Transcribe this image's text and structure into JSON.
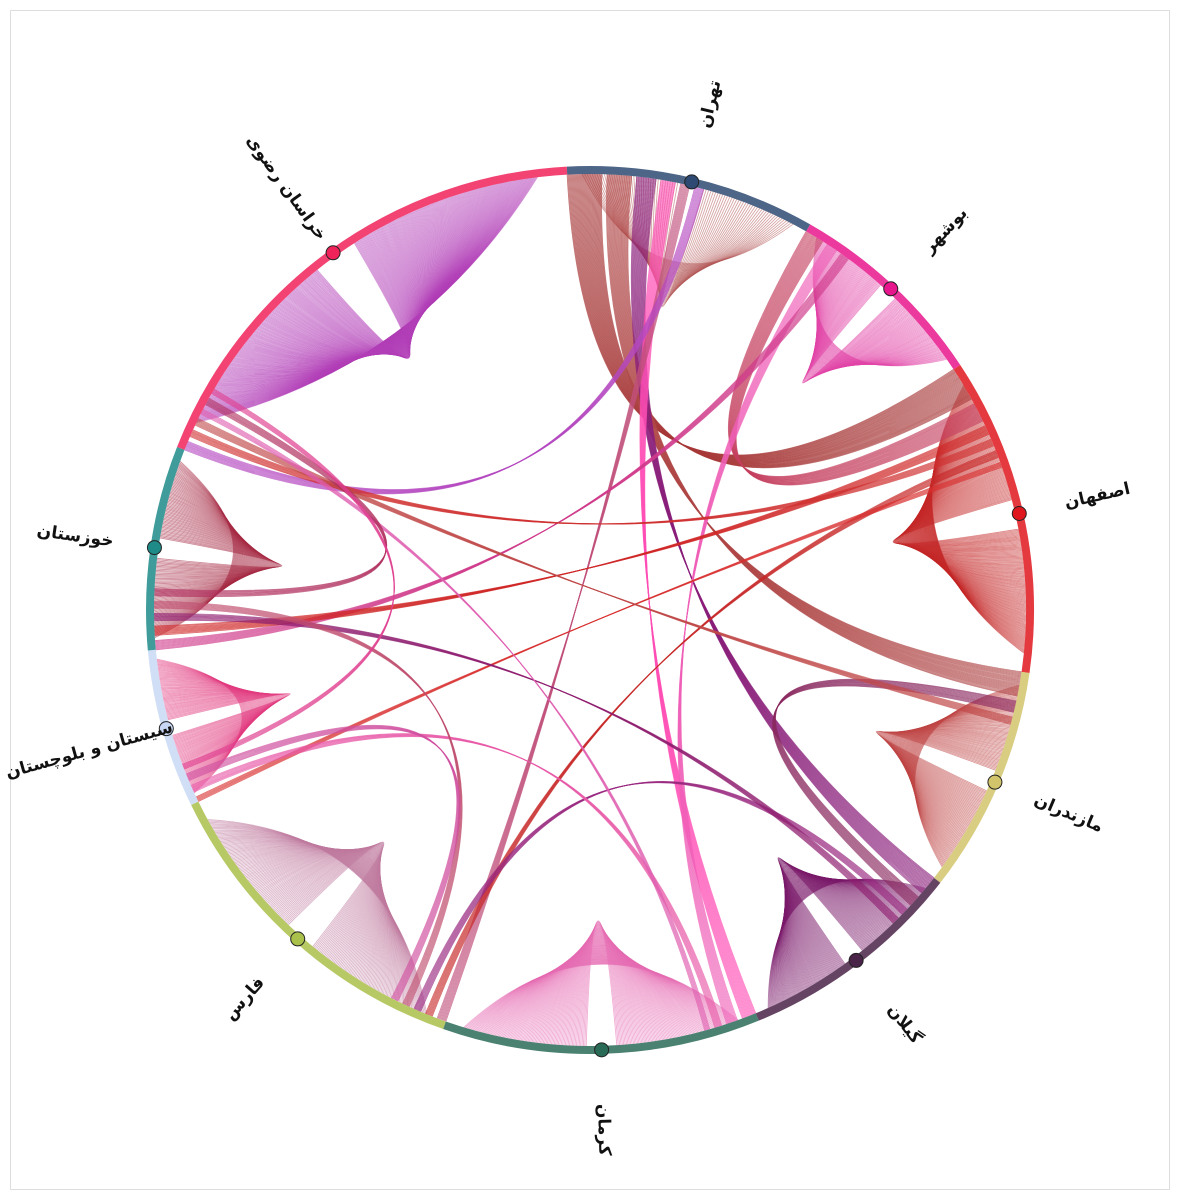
{
  "diagram": {
    "type": "hive-chord",
    "nodes": [
      {
        "name": "تهران",
        "color": "#2e4a72",
        "count": 110
      },
      {
        "name": "بوشهر",
        "color": "#e8168c",
        "count": 90
      },
      {
        "name": "اصفهان",
        "color": "#e0161e",
        "count": 140
      },
      {
        "name": "مازندران",
        "color": "#d1c46a",
        "count": 100
      },
      {
        "name": "گیلان",
        "color": "#4a2348",
        "count": 100
      },
      {
        "name": "کرمان",
        "color": "#2a6b58",
        "count": 140
      },
      {
        "name": "فارس",
        "color": "#a9c04a",
        "count": 150
      },
      {
        "name": "سیستان و بلوچستان",
        "color": "#c8d8f4",
        "count": 70
      },
      {
        "name": "خوزستان",
        "color": "#1f8b88",
        "count": 90
      },
      {
        "name": "خراسان رضوی",
        "color": "#f0225a",
        "count": 220
      }
    ],
    "links": [
      {
        "from": "خراسان رضوی",
        "to": "خراسان رضوی",
        "weight": 180,
        "color": "#b340b8"
      },
      {
        "from": "اصفهان",
        "to": "اصفهان",
        "weight": 110,
        "color": "#c42828"
      },
      {
        "from": "بوشهر",
        "to": "بوشهر",
        "weight": 70,
        "color": "#e245a8"
      },
      {
        "from": "مازندران",
        "to": "مازندران",
        "weight": 70,
        "color": "#c04646"
      },
      {
        "from": "گیلان",
        "to": "گیلان",
        "weight": 80,
        "color": "#7a1a6a"
      },
      {
        "from": "کرمان",
        "to": "کرمان",
        "weight": 90,
        "color": "#e66bb3"
      },
      {
        "from": "فارس",
        "to": "فارس",
        "weight": 90,
        "color": "#bf7a9f"
      },
      {
        "from": "خوزستان",
        "to": "خوزستان",
        "weight": 60,
        "color": "#a52a44"
      },
      {
        "from": "سیستان و بلوچستان",
        "to": "سیستان و بلوچستان",
        "weight": 55,
        "color": "#e13a80"
      },
      {
        "from": "تهران",
        "to": "تهران",
        "weight": 40,
        "color": "#b45a5a"
      },
      {
        "from": "تهران",
        "to": "اصفهان",
        "weight": 35,
        "color": "#a83a3a"
      },
      {
        "from": "تهران",
        "to": "مازندران",
        "weight": 25,
        "color": "#b04848"
      },
      {
        "from": "تهران",
        "to": "گیلان",
        "weight": 20,
        "color": "#8a1f7a"
      },
      {
        "from": "تهران",
        "to": "کرمان",
        "weight": 15,
        "color": "#ff4fb5"
      },
      {
        "from": "تهران",
        "to": "فارس",
        "weight": 10,
        "color": "#c0507a"
      },
      {
        "from": "تهران",
        "to": "خراسان رضوی",
        "weight": 10,
        "color": "#b548c0"
      },
      {
        "from": "بوشهر",
        "to": "اصفهان",
        "weight": 20,
        "color": "#c44060"
      },
      {
        "from": "بوشهر",
        "to": "کرمان",
        "weight": 12,
        "color": "#f060b8"
      },
      {
        "from": "بوشهر",
        "to": "خوزستان",
        "weight": 10,
        "color": "#d03c8c"
      },
      {
        "from": "اصفهان",
        "to": "خوزستان",
        "weight": 10,
        "color": "#d02828"
      },
      {
        "from": "اصفهان",
        "to": "خراسان رضوی",
        "weight": 8,
        "color": "#d03030"
      },
      {
        "from": "اصفهان",
        "to": "فارس",
        "weight": 8,
        "color": "#c82a2a"
      },
      {
        "from": "اصفهان",
        "to": "سیستان و بلوچستان",
        "weight": 6,
        "color": "#d83030"
      },
      {
        "from": "مازندران",
        "to": "گیلان",
        "weight": 12,
        "color": "#8a2a60"
      },
      {
        "from": "مازندران",
        "to": "خراسان رضوی",
        "weight": 8,
        "color": "#c04848"
      },
      {
        "from": "گیلان",
        "to": "فارس",
        "weight": 8,
        "color": "#9a2a80"
      },
      {
        "from": "گیلان",
        "to": "خوزستان",
        "weight": 8,
        "color": "#902070"
      },
      {
        "from": "کرمان",
        "to": "سیستان و بلوچستان",
        "weight": 8,
        "color": "#e85aa8"
      },
      {
        "from": "کرمان",
        "to": "خراسان رضوی",
        "weight": 6,
        "color": "#e060b0"
      },
      {
        "from": "فارس",
        "to": "خوزستان",
        "weight": 8,
        "color": "#c05070"
      },
      {
        "from": "فارس",
        "to": "سیستان و بلوچستان",
        "weight": 8,
        "color": "#d050a0"
      },
      {
        "from": "خوزستان",
        "to": "خراسان رضوی",
        "weight": 8,
        "color": "#b03060"
      },
      {
        "from": "سیستان و بلوچستان",
        "to": "خراسان رضوی",
        "weight": 6,
        "color": "#e04090"
      }
    ]
  }
}
